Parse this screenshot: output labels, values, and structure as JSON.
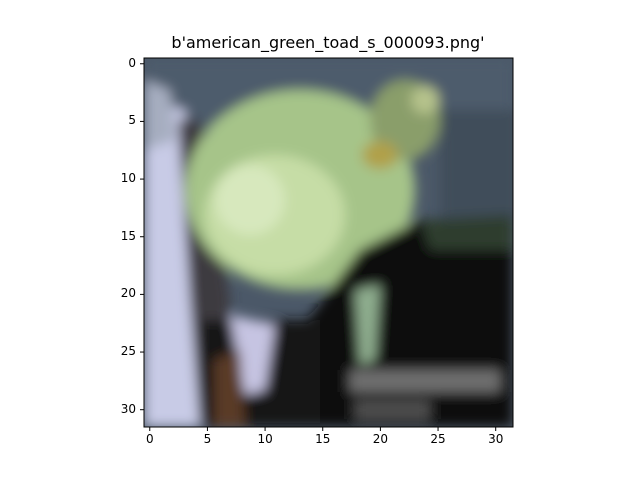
{
  "figure": {
    "title": "b'american_green_toad_s_000093.png'"
  },
  "image": {
    "type": "pixel-image",
    "grid": [
      32,
      32
    ],
    "description_colors": {
      "background_top": "#4a5a6a",
      "toad_body": "#a9c88a",
      "toad_highlight": "#cfe3b0",
      "left_edge": "#c8cbe6",
      "dark_area": "#0c0c0c",
      "gray_strip": "#6a6a6a"
    }
  },
  "chart_data": {
    "type": "heatmap",
    "title": "b'american_green_toad_s_000093.png'",
    "xlabel": "",
    "ylabel": "",
    "xlim": [
      -0.5,
      31.5
    ],
    "ylim": [
      31.5,
      -0.5
    ],
    "x_ticks": [
      "0",
      "5",
      "10",
      "15",
      "20",
      "25",
      "30"
    ],
    "y_ticks": [
      "0",
      "5",
      "10",
      "15",
      "20",
      "25",
      "30"
    ],
    "grid": false
  }
}
